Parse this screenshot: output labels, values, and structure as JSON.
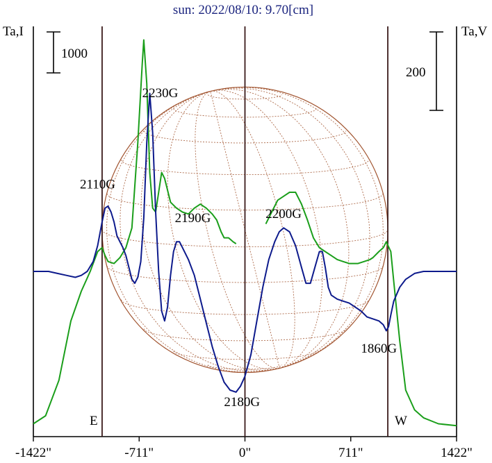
{
  "chart_data": {
    "type": "line",
    "title": "sun: 2022/08/10: 9.70[cm]",
    "left_axis_label": "Ta,I",
    "right_axis_label": "Ta,V",
    "scale_bar_left_label": "1000",
    "scale_bar_right_label": "200",
    "x_ticks": [
      {
        "value": -1422,
        "label": "-1422\""
      },
      {
        "value": -711,
        "label": "-711\""
      },
      {
        "value": 0,
        "label": "0\""
      },
      {
        "value": 711,
        "label": "711\""
      },
      {
        "value": 1422,
        "label": "1422\""
      }
    ],
    "xlim": [
      -1422,
      1422
    ],
    "limb_x": [
      -960,
      0,
      960
    ],
    "edge_labels": {
      "east": "E",
      "west": "W"
    },
    "colors": {
      "stokes_i": "#1a9e1a",
      "stokes_v": "#0d1a8c",
      "disk": "#a0522d",
      "limb_lines": "#3a1a1a",
      "title": "#1a237e"
    },
    "series": [
      {
        "color": "#1a9e1a",
        "points": [
          [
            -1422,
            0.03
          ],
          [
            -1340,
            0.07
          ],
          [
            -1250,
            0.25
          ],
          [
            -1170,
            0.55
          ],
          [
            -1100,
            0.7
          ],
          [
            -1040,
            0.8
          ],
          [
            -990,
            0.9
          ],
          [
            -960,
            0.92
          ],
          [
            -940,
            0.88
          ],
          [
            -920,
            0.85
          ],
          [
            -880,
            0.84
          ],
          [
            -840,
            0.87
          ],
          [
            -800,
            0.92
          ],
          [
            -760,
            1.02
          ],
          [
            -720,
            1.45
          ],
          [
            -690,
            1.85
          ],
          [
            -680,
            1.97
          ],
          [
            -660,
            1.75
          ],
          [
            -640,
            1.3
          ],
          [
            -620,
            1.12
          ],
          [
            -600,
            1.1
          ],
          [
            -580,
            1.2
          ],
          [
            -560,
            1.3
          ],
          [
            -540,
            1.27
          ],
          [
            -500,
            1.15
          ],
          [
            -460,
            1.12
          ],
          [
            -420,
            1.1
          ],
          [
            -380,
            1.09
          ],
          [
            -340,
            1.12
          ],
          [
            -300,
            1.14
          ],
          [
            -260,
            1.12
          ],
          [
            -220,
            1.09
          ],
          [
            -190,
            1.06
          ],
          [
            -160,
            1.0
          ],
          [
            -140,
            0.97
          ],
          [
            -110,
            0.97
          ],
          [
            -80,
            0.95
          ],
          [
            -60,
            0.94
          ]
        ]
      },
      {
        "color": "#1a9e1a",
        "points": [
          [
            140,
            1.04
          ],
          [
            180,
            1.1
          ],
          [
            220,
            1.16
          ],
          [
            260,
            1.18
          ],
          [
            300,
            1.2
          ],
          [
            340,
            1.2
          ],
          [
            380,
            1.14
          ],
          [
            420,
            1.06
          ],
          [
            460,
            0.97
          ],
          [
            500,
            0.92
          ],
          [
            540,
            0.9
          ],
          [
            580,
            0.88
          ],
          [
            620,
            0.86
          ],
          [
            660,
            0.85
          ],
          [
            700,
            0.84
          ],
          [
            760,
            0.84
          ],
          [
            800,
            0.85
          ],
          [
            840,
            0.86
          ],
          [
            860,
            0.87
          ],
          [
            900,
            0.9
          ],
          [
            930,
            0.92
          ],
          [
            950,
            0.95
          ],
          [
            980,
            0.9
          ],
          [
            1000,
            0.75
          ],
          [
            1040,
            0.45
          ],
          [
            1080,
            0.2
          ],
          [
            1140,
            0.1
          ],
          [
            1200,
            0.06
          ],
          [
            1300,
            0.03
          ],
          [
            1422,
            0.02
          ]
        ]
      },
      {
        "color": "#0d1a8c",
        "points": [
          [
            -1422,
            0.8
          ],
          [
            -1380,
            0.8
          ],
          [
            -1320,
            0.8
          ],
          [
            -1260,
            0.79
          ],
          [
            -1200,
            0.78
          ],
          [
            -1140,
            0.77
          ],
          [
            -1100,
            0.78
          ],
          [
            -1060,
            0.8
          ],
          [
            -1020,
            0.85
          ],
          [
            -990,
            0.93
          ],
          [
            -960,
            1.05
          ],
          [
            -940,
            1.12
          ],
          [
            -920,
            1.13
          ],
          [
            -900,
            1.1
          ],
          [
            -880,
            1.05
          ],
          [
            -860,
            0.98
          ],
          [
            -840,
            0.95
          ],
          [
            -820,
            0.92
          ],
          [
            -800,
            0.88
          ],
          [
            -780,
            0.82
          ],
          [
            -760,
            0.76
          ],
          [
            -740,
            0.74
          ],
          [
            -720,
            0.77
          ],
          [
            -700,
            0.85
          ],
          [
            -680,
            1.07
          ],
          [
            -660,
            1.45
          ],
          [
            -640,
            1.7
          ],
          [
            -620,
            1.5
          ],
          [
            -600,
            1.1
          ],
          [
            -580,
            0.8
          ],
          [
            -560,
            0.6
          ],
          [
            -540,
            0.55
          ],
          [
            -520,
            0.62
          ],
          [
            -500,
            0.78
          ],
          [
            -480,
            0.9
          ],
          [
            -460,
            0.95
          ],
          [
            -440,
            0.95
          ],
          [
            -420,
            0.92
          ],
          [
            -380,
            0.86
          ],
          [
            -340,
            0.78
          ],
          [
            -300,
            0.66
          ],
          [
            -260,
            0.54
          ],
          [
            -220,
            0.42
          ],
          [
            -180,
            0.32
          ],
          [
            -140,
            0.24
          ],
          [
            -100,
            0.2
          ],
          [
            -60,
            0.19
          ],
          [
            -30,
            0.22
          ],
          [
            0,
            0.27
          ],
          [
            40,
            0.38
          ],
          [
            80,
            0.55
          ],
          [
            120,
            0.72
          ],
          [
            160,
            0.86
          ],
          [
            200,
            0.95
          ],
          [
            230,
            1.0
          ],
          [
            260,
            1.02
          ],
          [
            300,
            1.0
          ],
          [
            340,
            0.93
          ],
          [
            380,
            0.82
          ],
          [
            410,
            0.74
          ],
          [
            440,
            0.74
          ],
          [
            470,
            0.82
          ],
          [
            500,
            0.9
          ],
          [
            520,
            0.9
          ],
          [
            540,
            0.82
          ],
          [
            560,
            0.72
          ],
          [
            580,
            0.68
          ],
          [
            620,
            0.66
          ],
          [
            660,
            0.65
          ],
          [
            700,
            0.64
          ],
          [
            740,
            0.62
          ],
          [
            780,
            0.6
          ],
          [
            820,
            0.57
          ],
          [
            860,
            0.56
          ],
          [
            900,
            0.55
          ],
          [
            930,
            0.53
          ],
          [
            950,
            0.5
          ],
          [
            965,
            0.52
          ],
          [
            980,
            0.58
          ],
          [
            1000,
            0.65
          ],
          [
            1040,
            0.72
          ],
          [
            1080,
            0.76
          ],
          [
            1140,
            0.79
          ],
          [
            1200,
            0.8
          ],
          [
            1300,
            0.8
          ],
          [
            1422,
            0.8
          ]
        ]
      }
    ],
    "annotations": [
      {
        "text": "2230G",
        "x": -570,
        "y": 1.68
      },
      {
        "text": "2110G",
        "x": -990,
        "y": 1.22
      },
      {
        "text": "2190G",
        "x": -350,
        "y": 1.05
      },
      {
        "text": "2200G",
        "x": 260,
        "y": 1.07
      },
      {
        "text": "2180G",
        "x": -20,
        "y": 0.12
      },
      {
        "text": "1860G",
        "x": 900,
        "y": 0.39
      }
    ]
  }
}
